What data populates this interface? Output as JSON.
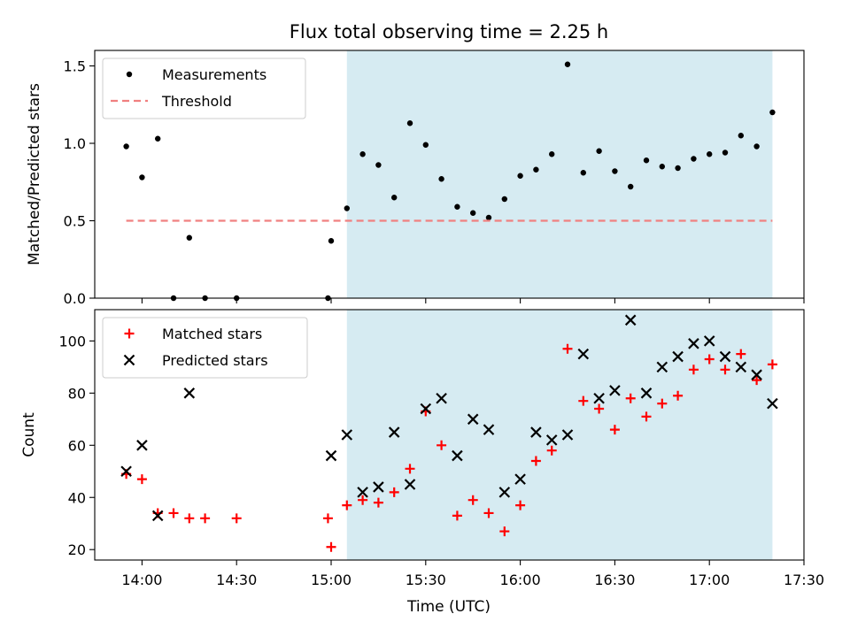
{
  "chart_data": {
    "title": "Flux total observing time = 2.25 h",
    "xlabel": "Time (UTC)",
    "x_units": "hours since 00:00 UTC",
    "xlim": [
      13.75,
      17.5
    ],
    "x_ticks": [
      {
        "value": 14.0,
        "label": "14:00"
      },
      {
        "value": 14.5,
        "label": "14:30"
      },
      {
        "value": 15.0,
        "label": "15:00"
      },
      {
        "value": 15.5,
        "label": "15:30"
      },
      {
        "value": 16.0,
        "label": "16:00"
      },
      {
        "value": 16.5,
        "label": "16:30"
      },
      {
        "value": 17.0,
        "label": "17:00"
      },
      {
        "value": 17.5,
        "label": "17:30"
      }
    ],
    "shaded_region": {
      "x": [
        15.0833,
        17.3333
      ],
      "color": "#add8e6"
    },
    "panels": [
      {
        "name": "ratio",
        "type": "scatter",
        "ylabel": "Matched/Predicted stars",
        "ylim": [
          0,
          1.6
        ],
        "y_ticks": [
          {
            "value": 0.0,
            "label": "0.0"
          },
          {
            "value": 0.5,
            "label": "0.5"
          },
          {
            "value": 1.0,
            "label": "1.0"
          },
          {
            "value": 1.5,
            "label": "1.5"
          }
        ],
        "legend": "top-left",
        "series": [
          {
            "name": "Measurements",
            "marker": "dot",
            "color": "#000000",
            "x": [
              13.9167,
              14.0,
              14.0833,
              14.1667,
              14.25,
              14.3333,
              14.5,
              14.9833,
              15.0,
              15.0833,
              15.1667,
              15.25,
              15.3333,
              15.4167,
              15.5,
              15.5833,
              15.6667,
              15.75,
              15.8333,
              15.9167,
              16.0,
              16.0833,
              16.1667,
              16.25,
              16.3333,
              16.4167,
              16.5,
              16.5833,
              16.6667,
              16.75,
              16.8333,
              16.9167,
              17.0,
              17.0833,
              17.1667,
              17.25,
              17.3333
            ],
            "y": [
              0.98,
              0.78,
              1.03,
              0.0,
              0.39,
              0.0,
              0.0,
              0.0,
              0.37,
              0.58,
              0.93,
              0.86,
              0.65,
              1.13,
              0.99,
              0.77,
              0.59,
              0.55,
              0.52,
              0.64,
              0.79,
              0.83,
              0.93,
              1.51,
              0.81,
              0.95,
              0.82,
              0.72,
              0.89,
              0.85,
              0.84,
              0.9,
              0.93,
              0.94,
              1.05,
              0.98,
              1.2
            ]
          },
          {
            "name": "Threshold",
            "marker": "dashed-line",
            "color": "#f08080",
            "x": [
              13.9167,
              17.3333
            ],
            "y": [
              0.5,
              0.5
            ]
          }
        ]
      },
      {
        "name": "counts",
        "type": "scatter",
        "ylabel": "Count",
        "ylim": [
          16,
          112
        ],
        "y_ticks": [
          {
            "value": 20,
            "label": "20"
          },
          {
            "value": 40,
            "label": "40"
          },
          {
            "value": 60,
            "label": "60"
          },
          {
            "value": 80,
            "label": "80"
          },
          {
            "value": 100,
            "label": "100"
          }
        ],
        "legend": "top-left",
        "series": [
          {
            "name": "Matched stars",
            "marker": "plus",
            "color": "#ff0000",
            "x": [
              13.9167,
              14.0,
              14.0833,
              14.1667,
              14.25,
              14.3333,
              14.5,
              14.9833,
              15.0,
              15.0833,
              15.1667,
              15.25,
              15.3333,
              15.4167,
              15.5,
              15.5833,
              15.6667,
              15.75,
              15.8333,
              15.9167,
              16.0,
              16.0833,
              16.1667,
              16.25,
              16.3333,
              16.4167,
              16.5,
              16.5833,
              16.6667,
              16.75,
              16.8333,
              16.9167,
              17.0,
              17.0833,
              17.1667,
              17.25,
              17.3333
            ],
            "y": [
              49,
              47,
              34,
              34,
              32,
              32,
              32,
              32,
              21,
              37,
              39,
              38,
              42,
              51,
              73,
              60,
              33,
              39,
              34,
              27,
              37,
              54,
              58,
              97,
              77,
              74,
              66,
              78,
              71,
              76,
              79,
              89,
              93,
              89,
              95,
              85,
              91
            ]
          },
          {
            "name": "Predicted stars",
            "marker": "x",
            "color": "#000000",
            "x": [
              13.9167,
              14.0,
              14.0833,
              14.25,
              15.0,
              15.0833,
              15.1667,
              15.25,
              15.3333,
              15.4167,
              15.5,
              15.5833,
              15.6667,
              15.75,
              15.8333,
              15.9167,
              16.0,
              16.0833,
              16.1667,
              16.25,
              16.3333,
              16.4167,
              16.5,
              16.5833,
              16.6667,
              16.75,
              16.8333,
              16.9167,
              17.0,
              17.0833,
              17.1667,
              17.25,
              17.3333
            ],
            "y": [
              50,
              60,
              33,
              80,
              56,
              64,
              42,
              44,
              65,
              45,
              74,
              78,
              56,
              70,
              66,
              42,
              47,
              65,
              62,
              64,
              95,
              78,
              81,
              108,
              80,
              90,
              94,
              99,
              100,
              94,
              90,
              87,
              76
            ]
          }
        ]
      }
    ]
  }
}
